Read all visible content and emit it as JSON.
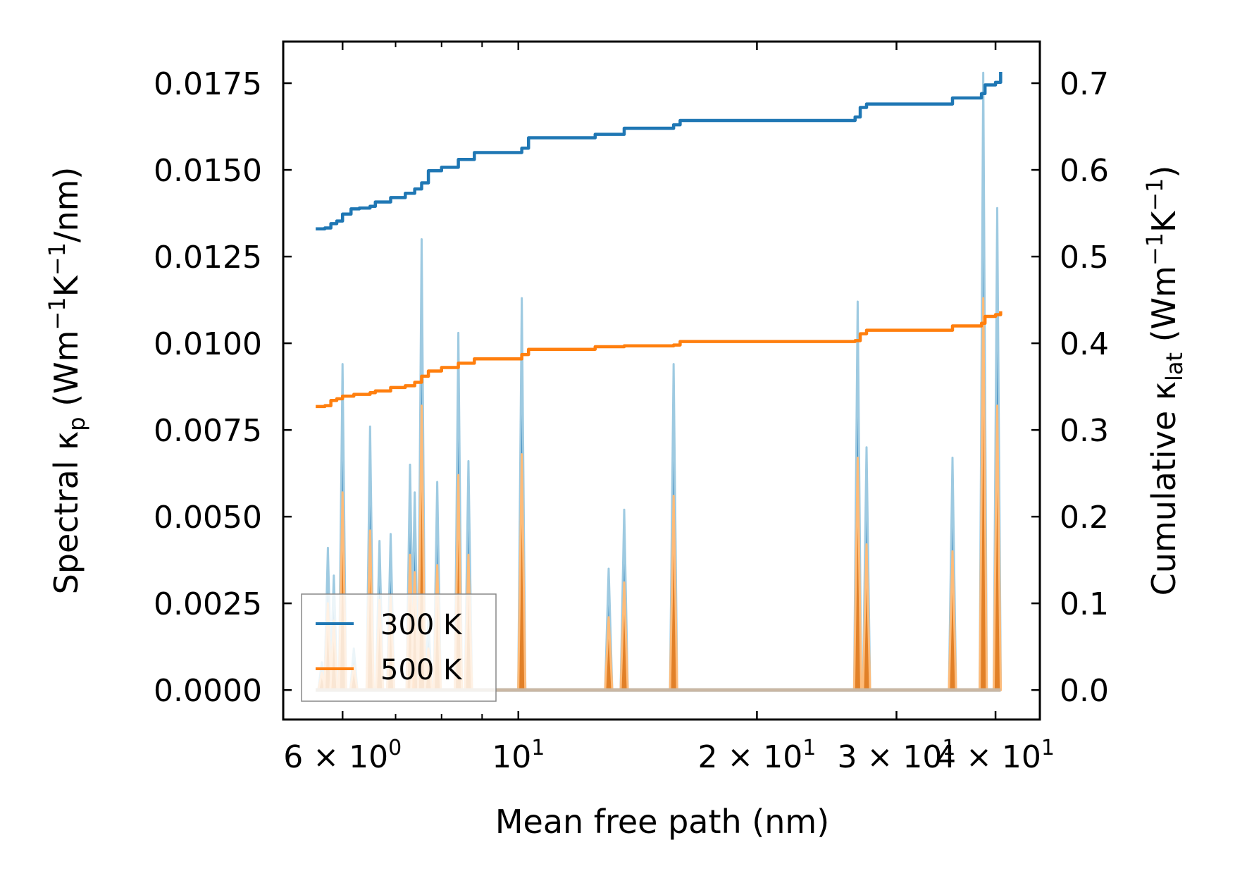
{
  "chart_data": {
    "type": "line",
    "title": "",
    "xlabel": "Mean free path (nm)",
    "ylabel_left": "Spectral κ_p (Wm⁻¹K⁻¹/nm)",
    "ylabel_right": "Cumulative κ_lat (Wm⁻¹K⁻¹)",
    "xscale": "log",
    "xlim": [
      5.05,
      45.5
    ],
    "ylim_left": [
      -0.00085,
      0.0187
    ],
    "ylim_right": [
      -0.034,
      0.748
    ],
    "x_ticks": [
      {
        "value": 6,
        "base": "6 × 10",
        "exp": "0"
      },
      {
        "value": 10,
        "base": "10",
        "exp": "1"
      },
      {
        "value": 20,
        "base": "2 × 10",
        "exp": "1"
      },
      {
        "value": 30,
        "base": "3 × 10",
        "exp": "1"
      },
      {
        "value": 40,
        "base": "4 × 10",
        "exp": "1"
      }
    ],
    "y_left_ticks": [
      "0.0000",
      "0.0025",
      "0.0050",
      "0.0075",
      "0.0100",
      "0.0125",
      "0.0150",
      "0.0175"
    ],
    "y_left_tick_values": [
      0,
      0.0025,
      0.005,
      0.0075,
      0.01,
      0.0125,
      0.015,
      0.0175
    ],
    "y_right_ticks": [
      "0.0",
      "0.1",
      "0.2",
      "0.3",
      "0.4",
      "0.5",
      "0.6",
      "0.7"
    ],
    "y_right_tick_values": [
      0,
      0.1,
      0.2,
      0.3,
      0.4,
      0.5,
      0.6,
      0.7
    ],
    "legend": {
      "position": "lower-left",
      "entries": [
        {
          "label": "300 K",
          "color": "#1f77b4"
        },
        {
          "label": "500 K",
          "color": "#ff7f0e"
        }
      ]
    },
    "spectral_series": [
      {
        "name": "300 K spectral",
        "color": "#1f77b4",
        "peaks": [
          [
            5.65,
            0.0008
          ],
          [
            5.75,
            0.0041
          ],
          [
            5.85,
            0.0033
          ],
          [
            6.0,
            0.0094
          ],
          [
            6.2,
            0.0012
          ],
          [
            6.5,
            0.0076
          ],
          [
            6.68,
            0.0043
          ],
          [
            6.9,
            0.0045
          ],
          [
            7.3,
            0.0065
          ],
          [
            7.4,
            0.0057
          ],
          [
            7.55,
            0.013
          ],
          [
            7.7,
            0.002
          ],
          [
            7.9,
            0.006
          ],
          [
            8.4,
            0.0103
          ],
          [
            8.65,
            0.0066
          ],
          [
            10.1,
            0.0113
          ],
          [
            13.0,
            0.0035
          ],
          [
            13.6,
            0.0052
          ],
          [
            15.7,
            0.0094
          ],
          [
            26.8,
            0.0112
          ],
          [
            27.5,
            0.007
          ],
          [
            35.3,
            0.0067
          ],
          [
            38.6,
            0.0178
          ],
          [
            40.2,
            0.0139
          ]
        ]
      },
      {
        "name": "500 K spectral",
        "color": "#ff7f0e",
        "peaks": [
          [
            5.65,
            0.0005
          ],
          [
            5.75,
            0.0025
          ],
          [
            5.85,
            0.002
          ],
          [
            6.0,
            0.0057
          ],
          [
            6.2,
            0.0007
          ],
          [
            6.5,
            0.0046
          ],
          [
            6.68,
            0.0026
          ],
          [
            6.9,
            0.0027
          ],
          [
            7.3,
            0.0039
          ],
          [
            7.4,
            0.0034
          ],
          [
            7.55,
            0.0082
          ],
          [
            7.7,
            0.0012
          ],
          [
            7.9,
            0.0036
          ],
          [
            8.4,
            0.0062
          ],
          [
            8.65,
            0.0039
          ],
          [
            10.1,
            0.0068
          ],
          [
            13.0,
            0.0021
          ],
          [
            13.6,
            0.0031
          ],
          [
            15.7,
            0.0056
          ],
          [
            26.8,
            0.0067
          ],
          [
            27.5,
            0.0042
          ],
          [
            35.3,
            0.004
          ],
          [
            38.6,
            0.0113
          ],
          [
            40.2,
            0.0082
          ]
        ]
      }
    ],
    "cumulative_series": [
      {
        "name": "300 K",
        "color": "#1f77b4",
        "points": [
          [
            5.55,
            0.532
          ],
          [
            5.7,
            0.533
          ],
          [
            5.8,
            0.538
          ],
          [
            5.9,
            0.541
          ],
          [
            6.0,
            0.549
          ],
          [
            6.15,
            0.555
          ],
          [
            6.3,
            0.556
          ],
          [
            6.5,
            0.558
          ],
          [
            6.6,
            0.563
          ],
          [
            6.9,
            0.568
          ],
          [
            7.2,
            0.573
          ],
          [
            7.4,
            0.578
          ],
          [
            7.55,
            0.585
          ],
          [
            7.7,
            0.599
          ],
          [
            8.0,
            0.603
          ],
          [
            8.4,
            0.612
          ],
          [
            8.8,
            0.62
          ],
          [
            10.1,
            0.625
          ],
          [
            10.3,
            0.637
          ],
          [
            12.5,
            0.641
          ],
          [
            13.6,
            0.648
          ],
          [
            15.7,
            0.652
          ],
          [
            16.0,
            0.657
          ],
          [
            26.6,
            0.661
          ],
          [
            27.0,
            0.672
          ],
          [
            27.5,
            0.676
          ],
          [
            35.3,
            0.683
          ],
          [
            38.4,
            0.688
          ],
          [
            38.8,
            0.698
          ],
          [
            40.0,
            0.701
          ],
          [
            40.6,
            0.713
          ]
        ]
      },
      {
        "name": "500 K",
        "color": "#ff7f0e",
        "points": [
          [
            5.55,
            0.327
          ],
          [
            5.7,
            0.328
          ],
          [
            5.8,
            0.334
          ],
          [
            5.9,
            0.336
          ],
          [
            6.0,
            0.339
          ],
          [
            6.2,
            0.341
          ],
          [
            6.5,
            0.343
          ],
          [
            6.6,
            0.345
          ],
          [
            6.9,
            0.349
          ],
          [
            7.2,
            0.351
          ],
          [
            7.4,
            0.355
          ],
          [
            7.55,
            0.362
          ],
          [
            7.7,
            0.368
          ],
          [
            8.0,
            0.372
          ],
          [
            8.4,
            0.377
          ],
          [
            8.8,
            0.382
          ],
          [
            10.1,
            0.387
          ],
          [
            10.3,
            0.393
          ],
          [
            12.5,
            0.396
          ],
          [
            13.6,
            0.397
          ],
          [
            15.7,
            0.398
          ],
          [
            16.0,
            0.402
          ],
          [
            26.6,
            0.403
          ],
          [
            27.0,
            0.411
          ],
          [
            27.5,
            0.415
          ],
          [
            35.3,
            0.42
          ],
          [
            38.4,
            0.423
          ],
          [
            38.8,
            0.431
          ],
          [
            40.0,
            0.433
          ],
          [
            40.6,
            0.437
          ]
        ]
      }
    ]
  }
}
